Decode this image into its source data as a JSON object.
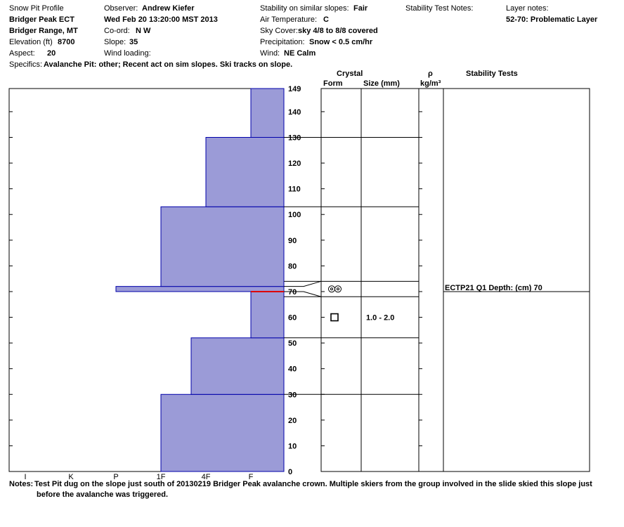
{
  "header": {
    "profile_label": "Snow Pit Profile",
    "site": "Bridger Peak ECT",
    "range": "Bridger Range, MT",
    "elevation_label": "Elevation (ft)",
    "elevation": "8700",
    "aspect_label": "Aspect:",
    "aspect": "20",
    "observer_label": "Observer:",
    "observer": "Andrew Kiefer",
    "datetime": "Wed Feb 20 13:20:00 MST 2013",
    "coord_label": "Co-ord:",
    "coord": "N  W",
    "slope_label": "Slope:",
    "slope": "35",
    "wind_loading_label": "Wind loading:",
    "wind_loading": "",
    "stability_label": "Stability on similar slopes:",
    "stability": "Fair",
    "air_temp_label": "Air Temperature:",
    "air_temp": "C",
    "sky_label": "Sky Cover:",
    "sky": "sky 4/8 to 8/8 covered",
    "precip_label": "Precipitation:",
    "precip": "Snow < 0.5 cm/hr",
    "wind_label": "Wind:",
    "wind": "NE Calm",
    "stability_notes_label": "Stability Test Notes:",
    "layer_notes_label": "Layer notes:",
    "layer_notes": "52-70: Problematic Layer",
    "specifics_label": "Specifics:",
    "specifics": "Avalanche Pit: other; Recent act on sim slopes. Ski tracks on slope."
  },
  "columns": {
    "crystal": "Crystal",
    "form": "Form",
    "size": "Size (mm)",
    "rho": "ρ",
    "density_unit": "kg/m³",
    "stability_tests": "Stability Tests"
  },
  "notes": {
    "label": "Notes:",
    "line1": "Test Pit dug on the slope just south of 20130219 Bridger Peak avalanche crown.  Multiple skiers from the group involved in the slide skied this slope just",
    "line2": "before the avalanche was triggered."
  },
  "chart_data": {
    "type": "bar",
    "orientation": "horizontal",
    "y_axis": {
      "min": 0,
      "max": 149,
      "ticks": [
        0,
        10,
        20,
        30,
        40,
        50,
        60,
        70,
        80,
        90,
        100,
        110,
        120,
        130,
        140,
        149
      ]
    },
    "x_axis": {
      "categories": [
        "I",
        "K",
        "P",
        "1F",
        "4F",
        "F"
      ]
    },
    "hardness_layers": [
      {
        "bottom": 0,
        "top": 30,
        "hardness": "1F"
      },
      {
        "bottom": 30,
        "top": 52,
        "hardness": "4F+"
      },
      {
        "bottom": 52,
        "top": 70,
        "hardness": "F"
      },
      {
        "bottom": 70,
        "top": 72,
        "hardness": "P"
      },
      {
        "bottom": 72,
        "top": 103,
        "hardness": "1F"
      },
      {
        "bottom": 103,
        "top": 130,
        "hardness": "4F"
      },
      {
        "bottom": 130,
        "top": 149,
        "hardness": "F"
      }
    ],
    "test_height": 70,
    "layer_boundaries": [
      30,
      52,
      68,
      74,
      103,
      130
    ],
    "crystals": [
      {
        "height": 71,
        "form": "rounded-grains-icon",
        "size": ""
      },
      {
        "height": 60,
        "form": "faceted-square-icon",
        "size": "1.0 - 2.0"
      }
    ],
    "stability_test": {
      "height": 70,
      "label": "ECTP21 Q1 Depth: (cm) 70"
    }
  },
  "colors": {
    "fill": "#9b9bd7",
    "edge": "#0000aa",
    "test_line": "#dd0000"
  }
}
